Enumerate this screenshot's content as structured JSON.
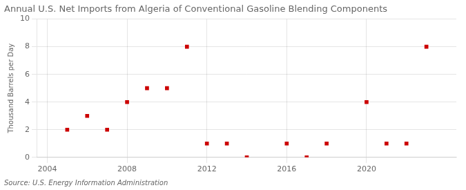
{
  "chart_data": {
    "type": "scatter",
    "title": "Annual U.S. Net Imports from Algeria of Conventional Gasoline Blending Components",
    "y_label": "Thousand Barrels per Day",
    "annotations": [
      "Source: U.S. Energy Information Administration"
    ],
    "x": [
      2005,
      2006,
      2007,
      2008,
      2009,
      2010,
      2011,
      2012,
      2013,
      2014,
      2016,
      2017,
      2018,
      2020,
      2021,
      2022,
      2023
    ],
    "values": [
      2,
      3,
      2,
      4,
      5,
      5,
      8,
      1,
      1,
      0,
      1,
      0,
      1,
      4,
      1,
      1,
      8
    ],
    "color": "#cc0000",
    "marker": "square",
    "xlim": [
      2003.5,
      2024.5
    ],
    "xticks": [
      2004,
      2008,
      2012,
      2016,
      2020
    ],
    "ylim": [
      0,
      10
    ],
    "yticks": [
      0,
      2,
      4,
      6,
      8,
      10
    ],
    "grid": true
  }
}
